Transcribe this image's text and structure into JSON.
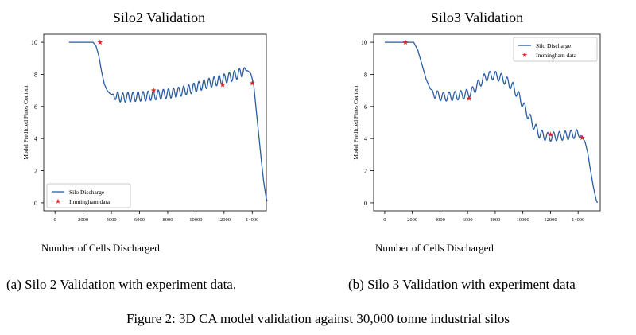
{
  "figure_caption": "Figure 2: 3D CA model validation against 30,000 tonne industrial silos",
  "panels": [
    {
      "title": "Silo2 Validation",
      "caption": "(a) Silo 2 Validation with experiment data."
    },
    {
      "title": "Silo3 Validation",
      "caption": "(b) Silo 3 Validation with experiment data"
    }
  ],
  "chart_data": [
    {
      "type": "line",
      "title": "Silo2 Validation",
      "xlabel": "Number of Cells Discharged",
      "ylabel": "Model Predicted Fines Content",
      "xlim": [
        -800,
        15000
      ],
      "ylim": [
        -0.5,
        10.5
      ],
      "x_ticks": [
        "0",
        "2000",
        "4000",
        "6000",
        "8000",
        "10000",
        "12000",
        "14000"
      ],
      "x_tick_values": [
        0,
        2000,
        4000,
        6000,
        8000,
        10000,
        12000,
        14000
      ],
      "y_ticks": [
        "0",
        "2",
        "4",
        "6",
        "8",
        "10"
      ],
      "y_tick_values": [
        0,
        2,
        4,
        6,
        8,
        10
      ],
      "legend_position": "lower-left",
      "series": [
        {
          "name": "Silo Discharge",
          "kind": "line",
          "color": "#2a5d9f",
          "points": [
            [
              1000,
              10
            ],
            [
              2100,
              10
            ],
            [
              2700,
              10
            ],
            [
              2900,
              9.8
            ],
            [
              3100,
              9.2
            ],
            [
              3300,
              8.2
            ],
            [
              3500,
              7.4
            ],
            [
              3700,
              7.0
            ],
            [
              3900,
              6.8
            ],
            [
              4200,
              6.65
            ],
            [
              4800,
              6.55
            ],
            [
              5500,
              6.6
            ],
            [
              6500,
              6.65
            ],
            [
              7500,
              6.75
            ],
            [
              8500,
              6.85
            ],
            [
              9500,
              7.05
            ],
            [
              10500,
              7.35
            ],
            [
              11500,
              7.6
            ],
            [
              12500,
              7.85
            ],
            [
              13200,
              8.1
            ],
            [
              13600,
              8.3
            ],
            [
              13900,
              8.05
            ],
            [
              14100,
              7.4
            ],
            [
              14200,
              6.5
            ],
            [
              14350,
              5.2
            ],
            [
              14500,
              3.9
            ],
            [
              14650,
              2.6
            ],
            [
              14800,
              1.4
            ],
            [
              14950,
              0.5
            ],
            [
              15050,
              0.1
            ]
          ],
          "oscillation_amplitude": 0.3,
          "oscillation_period": 360,
          "oscillation_range": [
            4000,
            13700
          ]
        },
        {
          "name": "Immingham data",
          "kind": "scatter",
          "marker": "star",
          "color": "#d62728",
          "points": [
            [
              3200,
              10
            ],
            [
              7000,
              7.0
            ],
            [
              11900,
              7.35
            ],
            [
              14000,
              7.45
            ]
          ]
        }
      ]
    },
    {
      "type": "line",
      "title": "Silo3 Validation",
      "xlabel": "Number of Cells Discharged",
      "ylabel": "Model Predicted Fines Content",
      "xlim": [
        -800,
        15600
      ],
      "ylim": [
        -0.5,
        10.5
      ],
      "x_ticks": [
        "0",
        "2000",
        "4000",
        "6000",
        "8000",
        "10000",
        "12000",
        "14000"
      ],
      "x_tick_values": [
        0,
        2000,
        4000,
        6000,
        8000,
        10000,
        12000,
        14000
      ],
      "y_ticks": [
        "0",
        "2",
        "4",
        "6",
        "8",
        "10"
      ],
      "y_tick_values": [
        0,
        2,
        4,
        6,
        8,
        10
      ],
      "legend_position": "upper-right",
      "series": [
        {
          "name": "Silo Discharge",
          "kind": "line",
          "color": "#2a5d9f",
          "points": [
            [
              0,
              10
            ],
            [
              1500,
              10
            ],
            [
              2100,
              10
            ],
            [
              2400,
              9.5
            ],
            [
              2700,
              8.6
            ],
            [
              3000,
              7.7
            ],
            [
              3300,
              7.1
            ],
            [
              3600,
              6.75
            ],
            [
              4200,
              6.6
            ],
            [
              5000,
              6.65
            ],
            [
              5800,
              6.75
            ],
            [
              6300,
              6.9
            ],
            [
              6800,
              7.4
            ],
            [
              7300,
              7.85
            ],
            [
              7800,
              7.95
            ],
            [
              8300,
              7.85
            ],
            [
              8800,
              7.6
            ],
            [
              9300,
              7.2
            ],
            [
              9800,
              6.5
            ],
            [
              10300,
              5.6
            ],
            [
              10800,
              4.8
            ],
            [
              11200,
              4.3
            ],
            [
              11800,
              4.1
            ],
            [
              12500,
              4.15
            ],
            [
              13200,
              4.2
            ],
            [
              13800,
              4.3
            ],
            [
              14200,
              4.2
            ],
            [
              14500,
              3.8
            ],
            [
              14700,
              3.1
            ],
            [
              14900,
              2.0
            ],
            [
              15100,
              1.0
            ],
            [
              15300,
              0.2
            ],
            [
              15400,
              0
            ]
          ],
          "oscillation_amplitude": 0.28,
          "oscillation_period": 420,
          "oscillation_range": [
            3300,
            14300
          ]
        },
        {
          "name": "Immingham data",
          "kind": "scatter",
          "marker": "star",
          "color": "#d62728",
          "points": [
            [
              1500,
              10
            ],
            [
              6100,
              6.5
            ],
            [
              12000,
              4.25
            ],
            [
              14300,
              4.05
            ]
          ]
        }
      ]
    }
  ]
}
